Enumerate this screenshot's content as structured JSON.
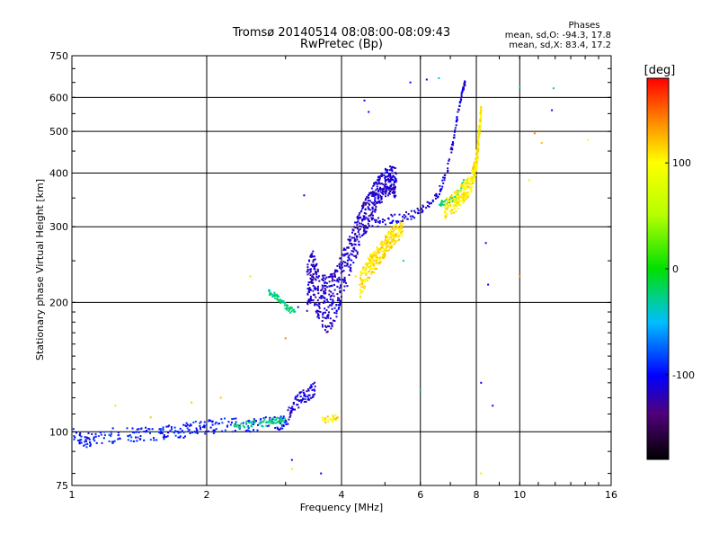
{
  "chart_data": {
    "type": "scatter",
    "title": "Tromsø 20140514 08:08:00-08:09:43",
    "subtitle": "RwPretec (Bp)",
    "xlabel": "Frequency [MHz]",
    "ylabel": "Stationary phase Virtual Height [km]",
    "x_scale": "log",
    "y_scale": "log",
    "xlim": [
      1,
      16
    ],
    "ylim": [
      75,
      750
    ],
    "x_ticks": [
      {
        "value": 1,
        "label": "1"
      },
      {
        "value": 2,
        "label": "2"
      },
      {
        "value": 4,
        "label": "4"
      },
      {
        "value": 6,
        "label": "6"
      },
      {
        "value": 8,
        "label": "8"
      },
      {
        "value": 10,
        "label": "10"
      },
      {
        "value": 16,
        "label": "16"
      }
    ],
    "y_ticks": [
      {
        "value": 75,
        "label": "75"
      },
      {
        "value": 100,
        "label": "100"
      },
      {
        "value": 200,
        "label": "200"
      },
      {
        "value": 300,
        "label": "300"
      },
      {
        "value": 400,
        "label": "400"
      },
      {
        "value": 500,
        "label": "500"
      },
      {
        "value": 600,
        "label": "600"
      },
      {
        "value": 750,
        "label": "750"
      }
    ],
    "grid": true,
    "colorbar": {
      "label": "[deg]",
      "range": [
        -180,
        180
      ],
      "ticks": [
        {
          "value": 100,
          "label": "100"
        },
        {
          "value": 0,
          "label": "0"
        },
        {
          "value": -100,
          "label": "-100"
        }
      ]
    },
    "phase_stats": {
      "heading": "Phases",
      "o_line": "mean, sd,O: -94.3, 17.8",
      "x_line": "mean, sd,X: 83.4, 17.2"
    },
    "traces": [
      {
        "label": "",
        "mode": "line",
        "phase": -95,
        "spread_km": 4,
        "x": [
          1.0,
          1.05,
          1.1,
          1.2,
          1.3,
          1.4,
          1.5,
          1.6,
          1.7,
          1.8,
          1.9,
          2.0,
          2.1,
          2.3,
          2.5,
          2.7,
          2.9,
          3.0
        ],
        "y": [
          99,
          96,
          95,
          98,
          98,
          99,
          99,
          100,
          100,
          101,
          102,
          103,
          103,
          104,
          104,
          105,
          105,
          106
        ]
      },
      {
        "label": "",
        "mode": "line",
        "phase": -25,
        "spread_km": 2,
        "x": [
          2.3,
          2.5,
          2.7,
          2.85,
          3.0
        ],
        "y": [
          103,
          104,
          105,
          106,
          106
        ]
      },
      {
        "label": "",
        "mode": "line",
        "phase": -110,
        "spread_km": 5,
        "x": [
          3.0,
          3.1,
          3.2,
          3.3,
          3.4,
          3.5
        ],
        "y": [
          106,
          113,
          118,
          121,
          124,
          126
        ]
      },
      {
        "label": "",
        "mode": "line",
        "phase": -25,
        "spread_km": 3,
        "x": [
          2.75,
          2.85,
          2.95,
          3.05,
          3.15
        ],
        "y": [
          212,
          207,
          200,
          193,
          190
        ]
      },
      {
        "label": "",
        "mode": "band",
        "phase": -115,
        "spread_km": 30,
        "x": [
          3.35,
          3.45,
          3.55,
          3.7,
          3.85,
          4.0,
          4.2,
          4.4,
          4.6,
          4.8,
          5.0,
          5.15,
          5.3
        ],
        "y": [
          220,
          235,
          210,
          200,
          205,
          230,
          260,
          300,
          330,
          360,
          380,
          385,
          380
        ]
      },
      {
        "label": "",
        "mode": "line",
        "phase": -110,
        "spread_km": 8,
        "x": [
          4.6,
          5.0,
          5.4,
          5.8,
          6.2,
          6.6,
          6.9,
          7.1,
          7.3,
          7.45,
          7.55
        ],
        "y": [
          305,
          310,
          315,
          320,
          335,
          360,
          410,
          470,
          560,
          620,
          650
        ]
      },
      {
        "label": "",
        "mode": "line",
        "phase": -25,
        "spread_km": 6,
        "x": [
          6.6,
          6.9,
          7.2,
          7.5
        ],
        "y": [
          340,
          345,
          350,
          380
        ]
      },
      {
        "label": "",
        "mode": "band",
        "phase": 110,
        "spread_km": 15,
        "x": [
          4.4,
          4.6,
          4.8,
          5.0,
          5.2,
          5.5
        ],
        "y": [
          220,
          240,
          255,
          270,
          285,
          300
        ]
      },
      {
        "label": "",
        "mode": "band",
        "phase": 105,
        "spread_km": 20,
        "x": [
          6.8,
          7.2,
          7.5,
          7.8,
          8.0,
          8.1,
          8.2
        ],
        "y": [
          330,
          345,
          360,
          380,
          420,
          480,
          560
        ]
      },
      {
        "label": "",
        "mode": "line",
        "phase": 110,
        "spread_km": 2,
        "x": [
          3.6,
          3.8,
          3.95
        ],
        "y": [
          106,
          107,
          109
        ]
      }
    ],
    "scattered_points": [
      {
        "x": 4.5,
        "y": 590,
        "phase": -100
      },
      {
        "x": 4.6,
        "y": 555,
        "phase": -100
      },
      {
        "x": 5.7,
        "y": 650,
        "phase": -100
      },
      {
        "x": 6.2,
        "y": 660,
        "phase": -100
      },
      {
        "x": 6.6,
        "y": 665,
        "phase": -40
      },
      {
        "x": 3.3,
        "y": 355,
        "phase": -100
      },
      {
        "x": 5.5,
        "y": 250,
        "phase": -40
      },
      {
        "x": 6.0,
        "y": 125,
        "phase": -25
      },
      {
        "x": 8.4,
        "y": 275,
        "phase": -100
      },
      {
        "x": 8.5,
        "y": 220,
        "phase": -100
      },
      {
        "x": 8.2,
        "y": 130,
        "phase": -100
      },
      {
        "x": 8.7,
        "y": 115,
        "phase": -100
      },
      {
        "x": 10.0,
        "y": 635,
        "phase": -25
      },
      {
        "x": 11.9,
        "y": 630,
        "phase": -25
      },
      {
        "x": 11.8,
        "y": 560,
        "phase": -100
      },
      {
        "x": 10.8,
        "y": 495,
        "phase": 140
      },
      {
        "x": 11.2,
        "y": 470,
        "phase": 120
      },
      {
        "x": 14.2,
        "y": 478,
        "phase": 100
      },
      {
        "x": 10.5,
        "y": 385,
        "phase": 110
      },
      {
        "x": 10.0,
        "y": 230,
        "phase": 140
      },
      {
        "x": 8.2,
        "y": 80,
        "phase": 110
      },
      {
        "x": 3.0,
        "y": 165,
        "phase": 140
      },
      {
        "x": 2.5,
        "y": 230,
        "phase": 110
      },
      {
        "x": 2.15,
        "y": 120,
        "phase": 120
      },
      {
        "x": 1.85,
        "y": 117,
        "phase": 120
      },
      {
        "x": 1.5,
        "y": 108,
        "phase": 120
      },
      {
        "x": 1.25,
        "y": 115,
        "phase": 110
      },
      {
        "x": 3.1,
        "y": 86,
        "phase": -100
      },
      {
        "x": 3.6,
        "y": 80,
        "phase": -100
      },
      {
        "x": 3.1,
        "y": 82,
        "phase": 110
      },
      {
        "x": 4.3,
        "y": 230,
        "phase": 110
      },
      {
        "x": 3.2,
        "y": 195,
        "phase": -100
      }
    ]
  }
}
